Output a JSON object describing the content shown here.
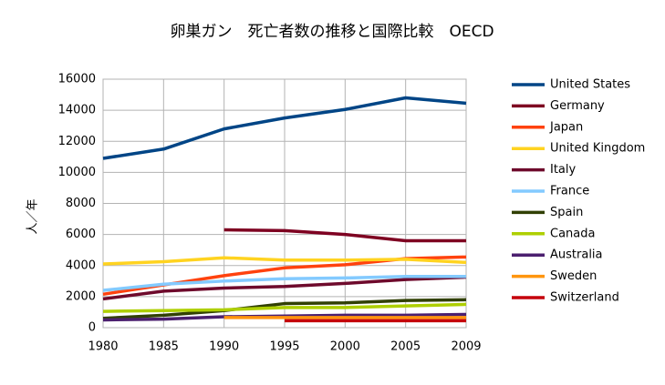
{
  "chart_data": {
    "type": "line",
    "title": "卵巣ガン　死亡者数の推移と国際比較　OECD",
    "y_label": "人／年",
    "categories": [
      "1980",
      "1985",
      "1990",
      "1995",
      "2000",
      "2005",
      "2009"
    ],
    "ylim": [
      0,
      16000
    ],
    "yticks": [
      0,
      2000,
      4000,
      6000,
      8000,
      10000,
      12000,
      14000,
      16000
    ],
    "grid": true,
    "legend": "right",
    "series": [
      {
        "name": "United States",
        "color": "#004586",
        "values": [
          10900,
          11500,
          12800,
          13500,
          14050,
          14800,
          14450
        ]
      },
      {
        "name": "Germany",
        "color": "#7e0021",
        "values": [
          null,
          null,
          6300,
          6250,
          6000,
          5600,
          5600
        ]
      },
      {
        "name": "Japan",
        "color": "#ff420e",
        "values": [
          2150,
          2750,
          3350,
          3850,
          4050,
          4450,
          4550
        ]
      },
      {
        "name": "United Kingdom",
        "color": "#ffd320",
        "values": [
          4100,
          4250,
          4500,
          4350,
          4350,
          4400,
          4200
        ]
      },
      {
        "name": "Italy",
        "color": "#6e0a2c",
        "values": [
          1850,
          2350,
          2550,
          2650,
          2850,
          3100,
          3250
        ]
      },
      {
        "name": "France",
        "color": "#83caff",
        "values": [
          2400,
          2800,
          3000,
          3150,
          3200,
          3300,
          3300
        ]
      },
      {
        "name": "Spain",
        "color": "#314004",
        "values": [
          600,
          800,
          1100,
          1550,
          1600,
          1750,
          1800
        ]
      },
      {
        "name": "Canada",
        "color": "#aecf00",
        "values": [
          1050,
          1100,
          1150,
          1300,
          1300,
          1400,
          1500
        ]
      },
      {
        "name": "Australia",
        "color": "#4b1f6f",
        "values": [
          500,
          550,
          700,
          750,
          800,
          800,
          850
        ]
      },
      {
        "name": "Sweden",
        "color": "#ff950e",
        "values": [
          null,
          null,
          650,
          650,
          650,
          650,
          650
        ]
      },
      {
        "name": "Switzerland",
        "color": "#c5000b",
        "values": [
          null,
          null,
          null,
          450,
          450,
          450,
          450
        ]
      }
    ]
  }
}
